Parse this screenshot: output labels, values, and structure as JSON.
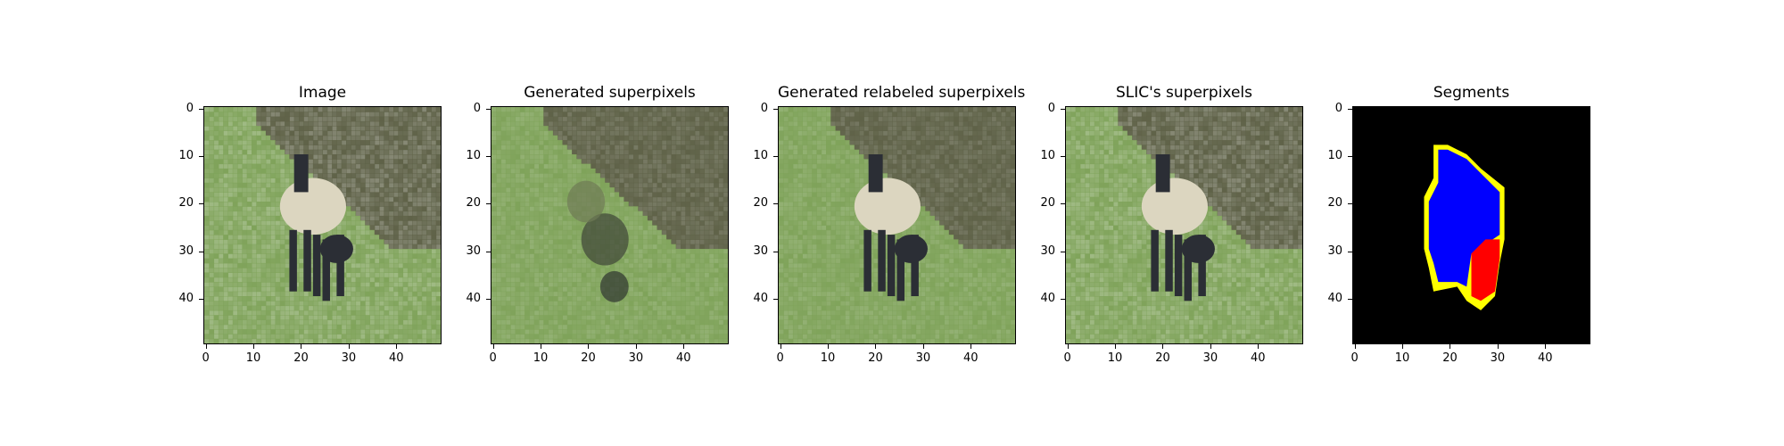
{
  "figure": {
    "panels": [
      {
        "title": "Image",
        "type": "photo"
      },
      {
        "title": "Generated superpixels",
        "type": "blur-photo"
      },
      {
        "title": "Generated relabeled superpixels",
        "type": "relabeled-photo"
      },
      {
        "title": "SLIC's superpixels",
        "type": "photo"
      },
      {
        "title": "Segments",
        "type": "segments"
      }
    ],
    "x_ticks": [
      "0",
      "10",
      "20",
      "30",
      "40"
    ],
    "y_ticks": [
      "0",
      "10",
      "20",
      "30",
      "40"
    ],
    "colors": {
      "grass": "#7fa35a",
      "sheep_wool": "#dcd6c0",
      "sheep_dark": "#2b2e35",
      "hedge": "#5f6248",
      "segment_background": "#000000",
      "segment_blue": "#0000ff",
      "segment_red": "#ff0000",
      "segment_yellow": "#ffff00"
    }
  }
}
